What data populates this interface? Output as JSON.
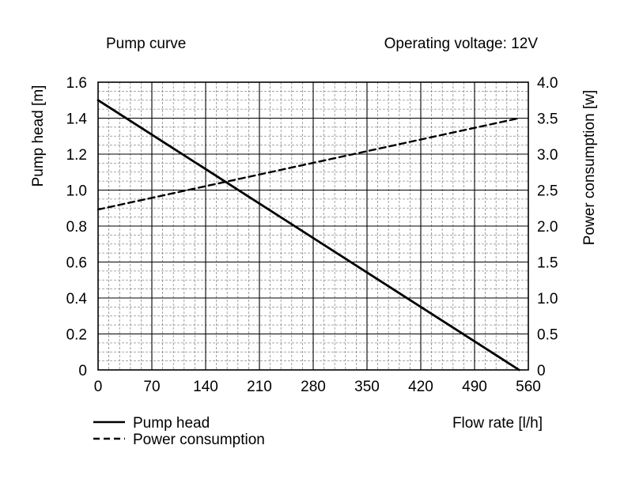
{
  "chart_data": {
    "type": "line",
    "title": "Pump curve",
    "subtitle": "Operating voltage: 12V",
    "xlabel": "Flow rate [l/h]",
    "ylabel": "Pump head [m]",
    "y2label": "Power consumption [w]",
    "xlim": [
      0,
      560
    ],
    "ylim": [
      0,
      1.6
    ],
    "y2lim": [
      0,
      4.0
    ],
    "grid": true,
    "legend_position": "bottom-left",
    "x_ticks": [
      "0",
      "70",
      "140",
      "210",
      "280",
      "350",
      "420",
      "490",
      "560"
    ],
    "y_ticks": [
      "0",
      "0.2",
      "0.4",
      "0.6",
      "0.8",
      "1.0",
      "1.2",
      "1.4",
      "1.6"
    ],
    "y2_ticks": [
      "0",
      "0.5",
      "1.0",
      "1.5",
      "2.0",
      "2.5",
      "3.0",
      "3.5",
      "4.0"
    ],
    "series": [
      {
        "name": "Pump head",
        "axis": "left",
        "style": "solid",
        "x": [
          0,
          548
        ],
        "y": [
          1.5,
          0
        ]
      },
      {
        "name": "Power consumption",
        "axis": "right",
        "style": "dashed",
        "x": [
          0,
          548
        ],
        "y": [
          2.23,
          3.5
        ]
      }
    ]
  }
}
